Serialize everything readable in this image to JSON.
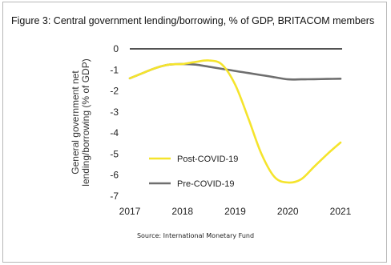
{
  "figure": {
    "title": "Figure 3: Central government lending/borrowing, % of GDP, BRITACOM members",
    "source": "Source: International Monetary Fund"
  },
  "chart_data": {
    "type": "line",
    "title": "Figure 3: Central government lending/borrowing, % of GDP, BRITACOM members",
    "xlabel": "",
    "ylabel_lines": [
      "General government net",
      "lending/borrowing (% of GDP)"
    ],
    "xlim": [
      2017,
      2021
    ],
    "ylim": [
      -7,
      0
    ],
    "x_ticks": [
      "2017",
      "2018",
      "2019",
      "2020",
      "2021"
    ],
    "y_ticks": [
      "0",
      "-1",
      "-2",
      "-3",
      "-4",
      "-5",
      "-6",
      "-7"
    ],
    "legend_position": "lower-left",
    "series": [
      {
        "name": "Post-COVID-19",
        "color": "#f5e42c",
        "x": [
          2017,
          2017.25,
          2017.5,
          2017.75,
          2018,
          2018.25,
          2018.5,
          2018.75,
          2019,
          2019.25,
          2019.5,
          2019.75,
          2020,
          2020.25,
          2020.5,
          2020.75,
          2021
        ],
        "y": [
          -1.4,
          -1.15,
          -0.9,
          -0.75,
          -0.72,
          -0.62,
          -0.55,
          -0.75,
          -1.7,
          -3.3,
          -5.0,
          -6.1,
          -6.35,
          -6.2,
          -5.6,
          -5.0,
          -4.45
        ]
      },
      {
        "name": "Pre-COVID-19",
        "color": "#6e6e6e",
        "x": [
          2017,
          2017.25,
          2017.5,
          2017.75,
          2018,
          2018.25,
          2018.5,
          2018.75,
          2019,
          2019.25,
          2019.5,
          2019.75,
          2020,
          2020.25,
          2020.5,
          2020.75,
          2021
        ],
        "y": [
          -1.4,
          -1.15,
          -0.9,
          -0.75,
          -0.72,
          -0.75,
          -0.85,
          -0.95,
          -1.05,
          -1.15,
          -1.25,
          -1.35,
          -1.45,
          -1.45,
          -1.44,
          -1.43,
          -1.42
        ]
      }
    ]
  }
}
